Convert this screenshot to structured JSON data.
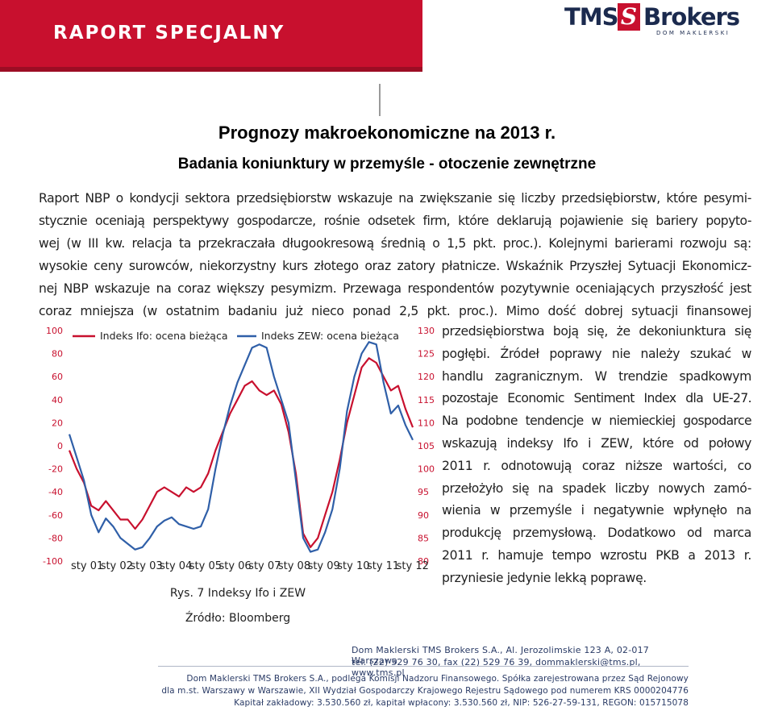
{
  "header": {
    "banner_title": "RAPORT SPECJALNY",
    "logo_left": "TMS",
    "logo_mark": "S",
    "logo_right": "Brokers",
    "logo_sub": "DOM MAKLERSKI",
    "banner_color": "#c8102e"
  },
  "title": "Prognozy makroekonomiczne na 2013 r.",
  "subtitle": "Badania koniunktury w przemyśle - otoczenie zewnętrzne",
  "paragraph_lines": [
    "Raport NBP o kondycji sektora przedsiębiorstw wskazuje na zwiększanie się liczby przedsiębiorstw, które pesymi-",
    "stycznie oceniają perspektywy gospodarcze, rośnie odsetek firm, które deklarują pojawienie się bariery popyto-",
    "wej (w III kw. relacja ta przekraczała długookresową średnią o 1,5 pkt. proc.). Kolejnymi barierami rozwoju są:",
    "wysokie ceny surowców, niekorzystny kurs złotego oraz zatory płatnicze. Wskaźnik Przyszłej Sytuacji Ekonomicz-",
    "nej NBP wskazuje na coraz większy pesymizm. Przewaga respondentów pozytywnie oceniających przyszłość jest",
    "coraz mniejsza (w ostatnim badaniu już nieco ponad 2,5 pkt. proc.). Mimo dość dobrej sytuacji finansowej"
  ],
  "side_lines": [
    "przedsiębiorstwa boją się, że dekoniunktura się",
    "pogłębi. Źródeł poprawy nie należy szukać w",
    "handlu zagranicznym. W trendzie spadkowym",
    "pozostaje Economic Sentiment Index dla UE-27.",
    "Na podobne tendencje w niemieckiej gospodarce",
    "wskazują indeksy Ifo i ZEW, które od połowy",
    "2011 r. odnotowują coraz niższe wartości, co",
    "przełożyło się na spadek liczby nowych zamó-",
    "wienia w przemyśle i negatywnie wpłynęło na",
    "produkcję przemysłową. Dodatkowo od marca",
    "2011 r. hamuje tempo wzrostu PKB a 2013 r.",
    "przyniesie jedynie lekką poprawę."
  ],
  "chart_data": {
    "type": "line",
    "x": [
      "01",
      "02",
      "03",
      "04",
      "05",
      "06",
      "07",
      "08",
      "09",
      "10",
      "11",
      "12"
    ],
    "x_tick_labels": [
      "sty 01",
      "sty 02",
      "sty 03",
      "sty 04",
      "sty 05",
      "sty 06",
      "sty 07",
      "sty 08",
      "sty 09",
      "sty 10",
      "sty 11",
      "sty 12"
    ],
    "series": [
      {
        "name": "Indeks Ifo: ocena bieżąca",
        "color": "#c8102e",
        "axis": "right",
        "values": [
          [
            2001.0,
            104
          ],
          [
            2001.25,
            100
          ],
          [
            2001.5,
            97
          ],
          [
            2001.75,
            92
          ],
          [
            2002.0,
            91
          ],
          [
            2002.25,
            93
          ],
          [
            2002.5,
            91
          ],
          [
            2002.75,
            89
          ],
          [
            2003.0,
            89
          ],
          [
            2003.25,
            87
          ],
          [
            2003.5,
            89
          ],
          [
            2003.75,
            92
          ],
          [
            2004.0,
            95
          ],
          [
            2004.25,
            96
          ],
          [
            2004.5,
            95
          ],
          [
            2004.75,
            94
          ],
          [
            2005.0,
            96
          ],
          [
            2005.25,
            95
          ],
          [
            2005.5,
            96
          ],
          [
            2005.75,
            99
          ],
          [
            2006.0,
            104
          ],
          [
            2006.25,
            108
          ],
          [
            2006.5,
            112
          ],
          [
            2006.75,
            115
          ],
          [
            2007.0,
            118
          ],
          [
            2007.25,
            119
          ],
          [
            2007.5,
            117
          ],
          [
            2007.75,
            116
          ],
          [
            2008.0,
            117
          ],
          [
            2008.25,
            114
          ],
          [
            2008.5,
            108
          ],
          [
            2008.75,
            99
          ],
          [
            2009.0,
            86
          ],
          [
            2009.25,
            83
          ],
          [
            2009.5,
            85
          ],
          [
            2009.75,
            90
          ],
          [
            2010.0,
            95
          ],
          [
            2010.25,
            102
          ],
          [
            2010.5,
            110
          ],
          [
            2010.75,
            116
          ],
          [
            2011.0,
            122
          ],
          [
            2011.25,
            124
          ],
          [
            2011.5,
            123
          ],
          [
            2011.75,
            120
          ],
          [
            2012.0,
            117
          ],
          [
            2012.25,
            118
          ],
          [
            2012.5,
            113
          ],
          [
            2012.75,
            109
          ]
        ]
      },
      {
        "name": "Indeks ZEW: ocena bieżąca",
        "color": "#2f5fa8",
        "axis": "left",
        "values": [
          [
            2001.0,
            10
          ],
          [
            2001.25,
            -10
          ],
          [
            2001.5,
            -30
          ],
          [
            2001.75,
            -60
          ],
          [
            2002.0,
            -75
          ],
          [
            2002.25,
            -63
          ],
          [
            2002.5,
            -70
          ],
          [
            2002.75,
            -80
          ],
          [
            2003.0,
            -85
          ],
          [
            2003.25,
            -90
          ],
          [
            2003.5,
            -88
          ],
          [
            2003.75,
            -80
          ],
          [
            2004.0,
            -70
          ],
          [
            2004.25,
            -65
          ],
          [
            2004.5,
            -62
          ],
          [
            2004.75,
            -68
          ],
          [
            2005.0,
            -70
          ],
          [
            2005.25,
            -72
          ],
          [
            2005.5,
            -70
          ],
          [
            2005.75,
            -55
          ],
          [
            2006.0,
            -20
          ],
          [
            2006.25,
            10
          ],
          [
            2006.5,
            35
          ],
          [
            2006.75,
            55
          ],
          [
            2007.0,
            70
          ],
          [
            2007.25,
            85
          ],
          [
            2007.5,
            88
          ],
          [
            2007.75,
            85
          ],
          [
            2008.0,
            60
          ],
          [
            2008.25,
            40
          ],
          [
            2008.5,
            20
          ],
          [
            2008.75,
            -30
          ],
          [
            2009.0,
            -80
          ],
          [
            2009.25,
            -92
          ],
          [
            2009.5,
            -90
          ],
          [
            2009.75,
            -75
          ],
          [
            2010.0,
            -55
          ],
          [
            2010.25,
            -20
          ],
          [
            2010.5,
            30
          ],
          [
            2010.75,
            60
          ],
          [
            2011.0,
            80
          ],
          [
            2011.25,
            90
          ],
          [
            2011.5,
            88
          ],
          [
            2011.75,
            55
          ],
          [
            2012.0,
            28
          ],
          [
            2012.25,
            35
          ],
          [
            2012.5,
            18
          ],
          [
            2012.75,
            5
          ]
        ]
      }
    ],
    "y_left": {
      "ticks": [
        100,
        80,
        60,
        40,
        20,
        0,
        -20,
        -40,
        -60,
        -80,
        -100
      ],
      "ylim": [
        -100,
        100
      ]
    },
    "y_right": {
      "ticks": [
        130,
        125,
        120,
        115,
        110,
        105,
        100,
        95,
        90,
        85,
        80
      ],
      "ylim": [
        80,
        130
      ]
    },
    "xlim": [
      2001,
      2012.75
    ]
  },
  "chart_caption": "Rys. 7 Indeksy Ifo i ZEW",
  "chart_source": "Źródło: Bloomberg",
  "footer": {
    "line1": "Dom Maklerski TMS Brokers S.A., Al. Jerozolimskie 123 A, 02-017 Warszawa",
    "line2": "tel. (22) 529 76 30, fax (22) 529 76 39, dommaklerski@tms.pl, www.tms.pl",
    "line3": "Dom Maklerski TMS Brokers S.A., podlega Komisji Nadzoru Finansowego. Spółka zarejestrowana przez Sąd Rejonowy",
    "line4": "dla m.st. Warszawy w Warszawie, XII Wydział Gospodarczy Krajowego Rejestru Sądowego pod numerem KRS 0000204776",
    "line5": "Kapitał zakładowy: 3.530.560 zł, kapitał wpłacony: 3.530.560 zł, NIP: 526-27-59-131, REGON: 015715078"
  }
}
